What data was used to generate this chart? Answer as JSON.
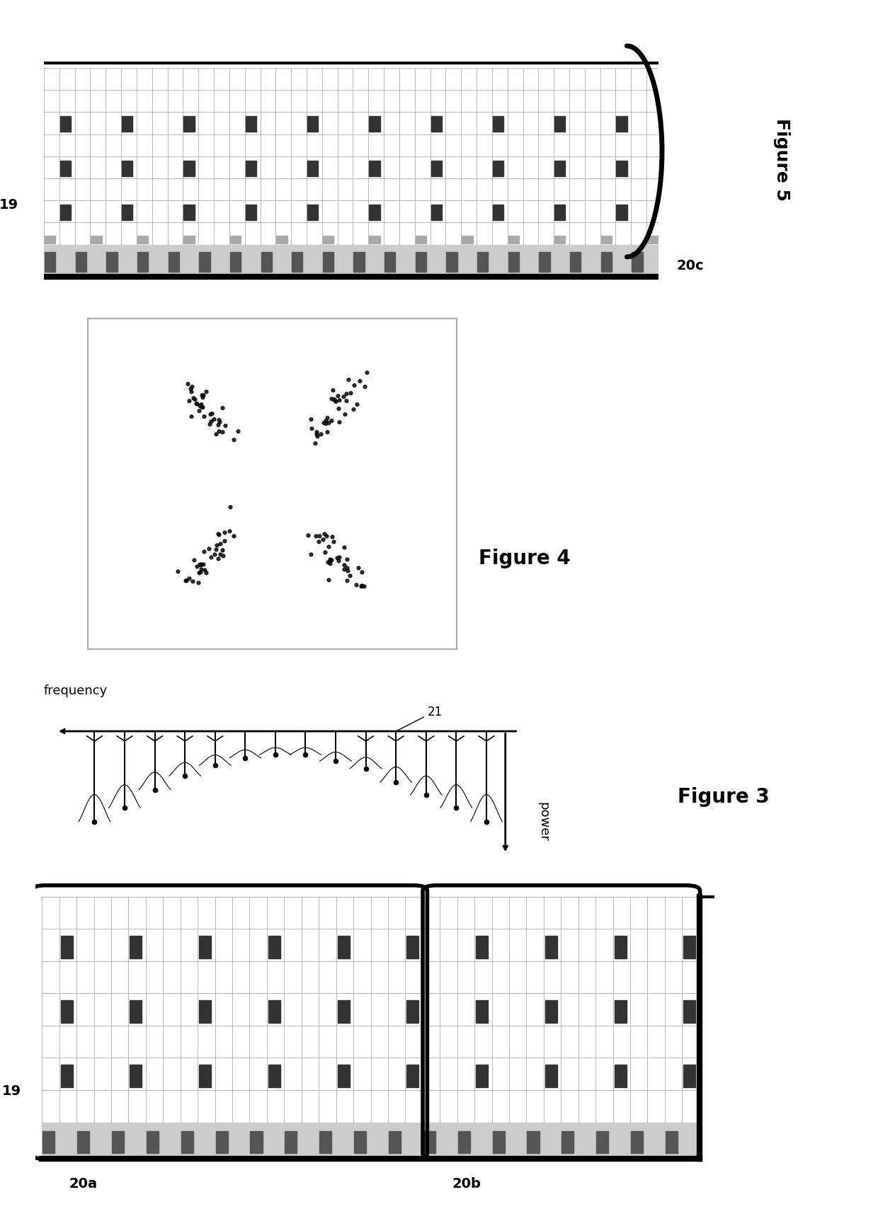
{
  "bg_color": "#ffffff",
  "fig_width": 12.4,
  "fig_height": 17.33,
  "fig5_label": "Figure 5",
  "fig4_label": "Figure 4",
  "fig3_label": "Figure 3",
  "label_19_fig5": "19",
  "label_20c": "20c",
  "label_19_fig3": "19",
  "label_20a": "20a",
  "label_20b": "20b",
  "label_21": "21",
  "label_freq": "frequency",
  "label_power": "power",
  "grid_color": "#888888",
  "pilot_color": "#333333",
  "pilot_light_color": "#aaaaaa",
  "border_color": "#111111",
  "thick_border_lw": 5,
  "thin_border_lw": 1.5
}
